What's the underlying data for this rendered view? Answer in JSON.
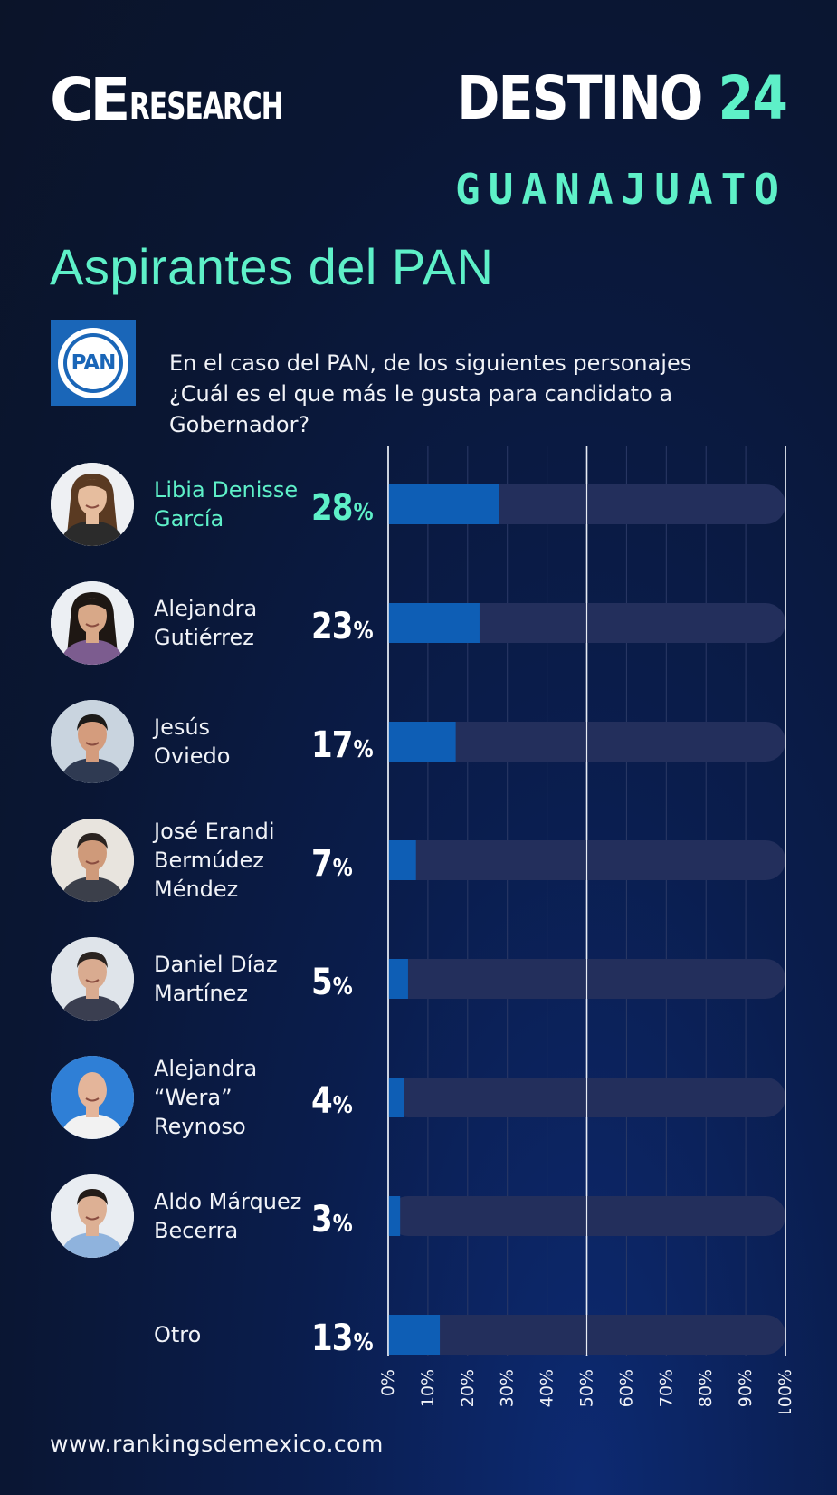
{
  "header": {
    "logo_ce": "CE",
    "logo_research": "RESEARCH",
    "destino": "DESTINO",
    "destino_num": "24",
    "state": "GUANAJUATO"
  },
  "heading": "Aspirantes del PAN",
  "party_logo_text": "PAN",
  "question": "En el caso del PAN, de los siguientes personajes ¿Cuál es el que más le gusta para candidato a Gobernador?",
  "colors": {
    "accent": "#5ef0c8",
    "bar_fill": "#0e5eb5",
    "bar_track": "#232f5c",
    "background": "#0a1633"
  },
  "chart_data": {
    "type": "bar",
    "orientation": "horizontal",
    "categories": [
      "Libia Denisse\nGarcía",
      "Alejandra\nGutiérrez",
      "Jesús\nOviedo",
      "José Erandi\nBermúdez\nMéndez",
      "Daniel Díaz\nMartínez",
      "Alejandra\n“Wera”\nReynoso",
      "Aldo Márquez\nBecerra",
      "Otro"
    ],
    "values": [
      28,
      23,
      17,
      7,
      5,
      4,
      3,
      13
    ],
    "value_labels": [
      "28",
      "23",
      "17",
      "7",
      "5",
      "4",
      "3",
      "13"
    ],
    "value_suffix": "%",
    "highlight_index": 0,
    "xlim": [
      0,
      100
    ],
    "x_ticks": [
      "0%",
      "10%",
      "20%",
      "30%",
      "40%",
      "50%",
      "60%",
      "70%",
      "80%",
      "90%",
      "100%"
    ],
    "grid": true,
    "title": "",
    "xlabel": "",
    "ylabel": ""
  },
  "footer": {
    "url": "www.rankingsdemexico.com"
  }
}
